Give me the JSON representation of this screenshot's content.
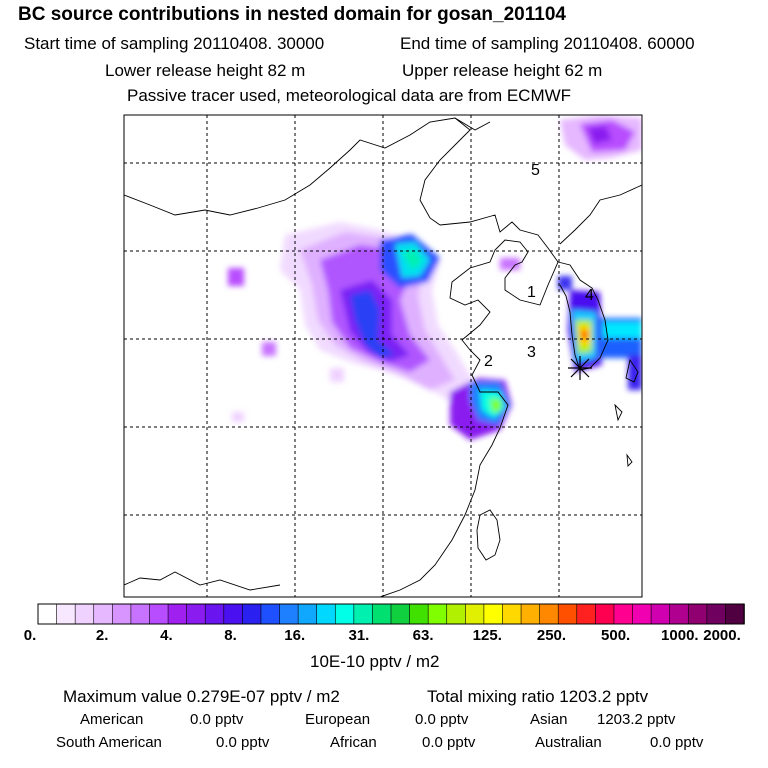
{
  "header": {
    "title": "BC  source contributions in nested domain for gosan_201104",
    "start_time": "Start time of sampling 20110408. 30000",
    "end_time": "End time of sampling 20110408. 60000",
    "lower_height": "Lower release height   82 m",
    "upper_height": "Upper release height   62 m",
    "note": "Passive tracer used, meteorological data are from ECMWF"
  },
  "map": {
    "region_labels": [
      "1",
      "2",
      "3",
      "4",
      "5"
    ]
  },
  "colorbar": {
    "ticks": [
      "0.",
      "2.",
      "4.",
      "8.",
      "16.",
      "31.",
      "63.",
      "125.",
      "250.",
      "500.",
      "1000.",
      "2000."
    ],
    "units": "10E-10 pptv / m2",
    "colors": [
      "#ffffff",
      "#f7e8ff",
      "#efd2ff",
      "#e6b8ff",
      "#d895ff",
      "#c873ff",
      "#b84dff",
      "#a020f0",
      "#8a1cf0",
      "#6a14f0",
      "#4a10f0",
      "#2a20f0",
      "#1e50ff",
      "#1e80ff",
      "#10a8ff",
      "#00d8ff",
      "#00ffe6",
      "#00f0b0",
      "#00e070",
      "#10d040",
      "#40e000",
      "#80ff00",
      "#b0f000",
      "#e0f000",
      "#ffff00",
      "#ffd800",
      "#ffb000",
      "#ff8800",
      "#ff5000",
      "#ff2020",
      "#ff0050",
      "#ff0090",
      "#f000b0",
      "#d000b0",
      "#b00090",
      "#900070",
      "#700060",
      "#500040"
    ]
  },
  "stats": {
    "max_value": "Maximum value  0.279E-07 pptv / m2",
    "total_mixing": "Total mixing ratio     1203.2 pptv"
  },
  "regions": {
    "american": {
      "label": "American",
      "value": "0.0 pptv"
    },
    "european": {
      "label": "European",
      "value": "0.0 pptv"
    },
    "asian": {
      "label": "Asian",
      "value": "1203.2 pptv"
    },
    "south_american": {
      "label": "South American",
      "value": "0.0 pptv"
    },
    "african": {
      "label": "African",
      "value": "0.0 pptv"
    },
    "australian": {
      "label": "Australian",
      "value": "0.0 pptv"
    }
  }
}
